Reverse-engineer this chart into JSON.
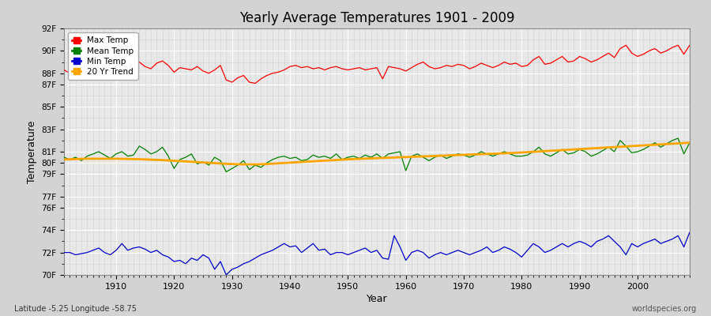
{
  "title": "Yearly Average Temperatures 1901 - 2009",
  "xlabel": "Year",
  "ylabel": "Temperature",
  "subtitle_left": "Latitude -5.25 Longitude -58.75",
  "subtitle_right": "worldspecies.org",
  "years": [
    1901,
    1902,
    1903,
    1904,
    1905,
    1906,
    1907,
    1908,
    1909,
    1910,
    1911,
    1912,
    1913,
    1914,
    1915,
    1916,
    1917,
    1918,
    1919,
    1920,
    1921,
    1922,
    1923,
    1924,
    1925,
    1926,
    1927,
    1928,
    1929,
    1930,
    1931,
    1932,
    1933,
    1934,
    1935,
    1936,
    1937,
    1938,
    1939,
    1940,
    1941,
    1942,
    1943,
    1944,
    1945,
    1946,
    1947,
    1948,
    1949,
    1950,
    1951,
    1952,
    1953,
    1954,
    1955,
    1956,
    1957,
    1958,
    1959,
    1960,
    1961,
    1962,
    1963,
    1964,
    1965,
    1966,
    1967,
    1968,
    1969,
    1970,
    1971,
    1972,
    1973,
    1974,
    1975,
    1976,
    1977,
    1978,
    1979,
    1980,
    1981,
    1982,
    1983,
    1984,
    1985,
    1986,
    1987,
    1988,
    1989,
    1990,
    1991,
    1992,
    1993,
    1994,
    1995,
    1996,
    1997,
    1998,
    1999,
    2000,
    2001,
    2002,
    2003,
    2004,
    2005,
    2006,
    2007,
    2008,
    2009
  ],
  "max_temp": [
    88.3,
    88.0,
    88.2,
    88.1,
    88.5,
    88.4,
    88.6,
    88.2,
    88.3,
    90.0,
    89.2,
    88.5,
    88.8,
    89.0,
    88.6,
    88.4,
    88.9,
    89.1,
    88.7,
    88.1,
    88.5,
    88.4,
    88.3,
    88.6,
    88.2,
    88.0,
    88.3,
    88.7,
    87.4,
    87.2,
    87.6,
    87.8,
    87.2,
    87.1,
    87.5,
    87.8,
    88.0,
    88.1,
    88.3,
    88.6,
    88.7,
    88.5,
    88.6,
    88.4,
    88.5,
    88.3,
    88.5,
    88.6,
    88.4,
    88.3,
    88.4,
    88.5,
    88.3,
    88.4,
    88.5,
    87.5,
    88.6,
    88.5,
    88.4,
    88.2,
    88.5,
    88.8,
    89.0,
    88.6,
    88.4,
    88.5,
    88.7,
    88.6,
    88.8,
    88.7,
    88.4,
    88.6,
    88.9,
    88.7,
    88.5,
    88.7,
    89.0,
    88.8,
    88.9,
    88.6,
    88.7,
    89.2,
    89.5,
    88.8,
    88.9,
    89.2,
    89.5,
    89.0,
    89.1,
    89.5,
    89.3,
    89.0,
    89.2,
    89.5,
    89.8,
    89.4,
    90.2,
    90.5,
    89.8,
    89.5,
    89.7,
    90.0,
    90.2,
    89.8,
    90.0,
    90.3,
    90.5,
    89.7,
    90.5
  ],
  "mean_temp": [
    80.5,
    80.3,
    80.5,
    80.2,
    80.6,
    80.8,
    81.0,
    80.7,
    80.4,
    80.8,
    81.0,
    80.6,
    80.7,
    81.5,
    81.2,
    80.8,
    81.0,
    81.4,
    80.6,
    79.5,
    80.3,
    80.5,
    80.8,
    79.9,
    80.1,
    79.8,
    80.5,
    80.2,
    79.2,
    79.5,
    79.8,
    80.2,
    79.4,
    79.8,
    79.6,
    80.0,
    80.3,
    80.5,
    80.6,
    80.4,
    80.5,
    80.2,
    80.3,
    80.7,
    80.5,
    80.6,
    80.4,
    80.8,
    80.3,
    80.5,
    80.6,
    80.4,
    80.7,
    80.5,
    80.8,
    80.4,
    80.8,
    80.9,
    81.0,
    79.3,
    80.6,
    80.8,
    80.5,
    80.2,
    80.5,
    80.7,
    80.4,
    80.6,
    80.8,
    80.7,
    80.5,
    80.7,
    81.0,
    80.8,
    80.6,
    80.8,
    81.0,
    80.8,
    80.6,
    80.6,
    80.7,
    81.0,
    81.4,
    80.8,
    80.6,
    80.9,
    81.2,
    80.8,
    80.9,
    81.2,
    81.0,
    80.6,
    80.8,
    81.1,
    81.4,
    81.0,
    82.0,
    81.5,
    80.9,
    81.0,
    81.2,
    81.5,
    81.8,
    81.4,
    81.7,
    82.0,
    82.2,
    80.8,
    81.8
  ],
  "min_temp": [
    72.0,
    72.0,
    71.8,
    71.9,
    72.0,
    72.2,
    72.4,
    72.0,
    71.8,
    72.2,
    72.8,
    72.2,
    72.4,
    72.5,
    72.3,
    72.0,
    72.2,
    71.8,
    71.6,
    71.2,
    71.3,
    71.0,
    71.5,
    71.3,
    71.8,
    71.5,
    70.5,
    71.2,
    70.0,
    70.5,
    70.7,
    71.0,
    71.2,
    71.5,
    71.8,
    72.0,
    72.2,
    72.5,
    72.8,
    72.5,
    72.6,
    72.0,
    72.4,
    72.8,
    72.2,
    72.3,
    71.8,
    72.0,
    72.0,
    71.8,
    72.0,
    72.2,
    72.4,
    72.0,
    72.2,
    71.5,
    71.4,
    73.5,
    72.5,
    71.3,
    72.0,
    72.2,
    72.0,
    71.5,
    71.8,
    72.0,
    71.8,
    72.0,
    72.2,
    72.0,
    71.8,
    72.0,
    72.2,
    72.5,
    72.0,
    72.2,
    72.5,
    72.3,
    72.0,
    71.6,
    72.2,
    72.8,
    72.5,
    72.0,
    72.2,
    72.5,
    72.8,
    72.5,
    72.8,
    73.0,
    72.8,
    72.5,
    73.0,
    73.2,
    73.5,
    73.0,
    72.5,
    71.8,
    72.8,
    72.5,
    72.8,
    73.0,
    73.2,
    72.8,
    73.0,
    73.2,
    73.5,
    72.5,
    73.8
  ],
  "trend_values": [
    80.3,
    80.32,
    80.34,
    80.36,
    80.37,
    80.37,
    80.37,
    80.37,
    80.37,
    80.37,
    80.36,
    80.35,
    80.34,
    80.33,
    80.31,
    80.29,
    80.27,
    80.25,
    80.22,
    80.19,
    80.16,
    80.13,
    80.1,
    80.07,
    80.04,
    80.01,
    79.98,
    79.95,
    79.92,
    79.9,
    79.88,
    79.87,
    79.87,
    79.87,
    79.88,
    79.9,
    79.93,
    79.96,
    79.99,
    80.02,
    80.05,
    80.08,
    80.11,
    80.14,
    80.17,
    80.2,
    80.23,
    80.26,
    80.29,
    80.32,
    80.34,
    80.36,
    80.38,
    80.4,
    80.42,
    80.44,
    80.46,
    80.48,
    80.5,
    80.52,
    80.54,
    80.56,
    80.58,
    80.6,
    80.62,
    80.64,
    80.66,
    80.68,
    80.7,
    80.72,
    80.74,
    80.76,
    80.78,
    80.8,
    80.82,
    80.84,
    80.86,
    80.88,
    80.9,
    80.93,
    80.96,
    80.99,
    81.02,
    81.05,
    81.08,
    81.11,
    81.14,
    81.17,
    81.2,
    81.23,
    81.26,
    81.29,
    81.32,
    81.35,
    81.38,
    81.41,
    81.44,
    81.47,
    81.5,
    81.53,
    81.56,
    81.59,
    81.62,
    81.65,
    81.68,
    81.71,
    81.74,
    81.77,
    81.8
  ],
  "ylim": [
    70,
    92
  ],
  "ytick_positions": [
    70,
    72,
    74,
    76,
    77,
    79,
    80,
    81,
    83,
    85,
    87,
    88,
    90,
    92
  ],
  "ytick_labels": [
    "70F",
    "72F",
    "74F",
    "76F",
    "77F",
    "79F",
    "80F",
    "81F",
    "83F",
    "85F",
    "87F",
    "88F",
    "90F",
    "92F"
  ],
  "xticks": [
    1910,
    1920,
    1930,
    1940,
    1950,
    1960,
    1970,
    1980,
    1990,
    2000
  ],
  "color_max": "#ff0000",
  "color_mean": "#008000",
  "color_min": "#0000cd",
  "color_trend": "#ffa500",
  "bg_color": "#d3d3d3",
  "plot_bg": "#e8e8e8",
  "grid_color": "#ffffff",
  "grid_minor_color": "#d0d0d0",
  "legend_labels": [
    "Max Temp",
    "Mean Temp",
    "Min Temp",
    "20 Yr Trend"
  ],
  "legend_marker_colors": [
    "#ff0000",
    "#008000",
    "#0000cd",
    "#ffa500"
  ]
}
